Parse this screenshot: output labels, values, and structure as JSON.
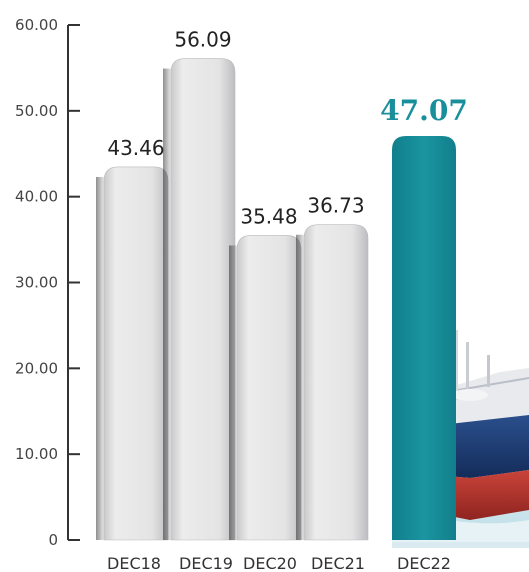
{
  "chart_data": {
    "type": "bar",
    "title": "",
    "xlabel": "",
    "ylabel": "",
    "ylim": [
      0,
      60
    ],
    "yticks": [
      0,
      10,
      20,
      30,
      40,
      50,
      60
    ],
    "ytick_labels": [
      "0",
      "10.00",
      "20.00",
      "30.00",
      "40.00",
      "50.00",
      "60.00"
    ],
    "categories": [
      "DEC18",
      "DEC19",
      "DEC20",
      "DEC21",
      "DEC22"
    ],
    "values": [
      43.46,
      56.09,
      35.48,
      36.73,
      47.07
    ],
    "value_labels": [
      "43.46",
      "56.09",
      "35.48",
      "36.73",
      "47.07"
    ],
    "highlight_index": 4,
    "colors": {
      "bar": "#e6e6e7",
      "bar_edge": "#b9b9bb",
      "highlight_bar": "#148a96",
      "highlight_label": "#1a8f9c",
      "axis": "#333333",
      "ship_hull_red": "#b8322a",
      "ship_hull_blue": "#1f3f78",
      "ship_deck": "#e8eaee",
      "sea": "#cfe7ee"
    },
    "grid": false,
    "legend": "none",
    "decorations": [
      "ship-image-behind-last-bar"
    ]
  }
}
